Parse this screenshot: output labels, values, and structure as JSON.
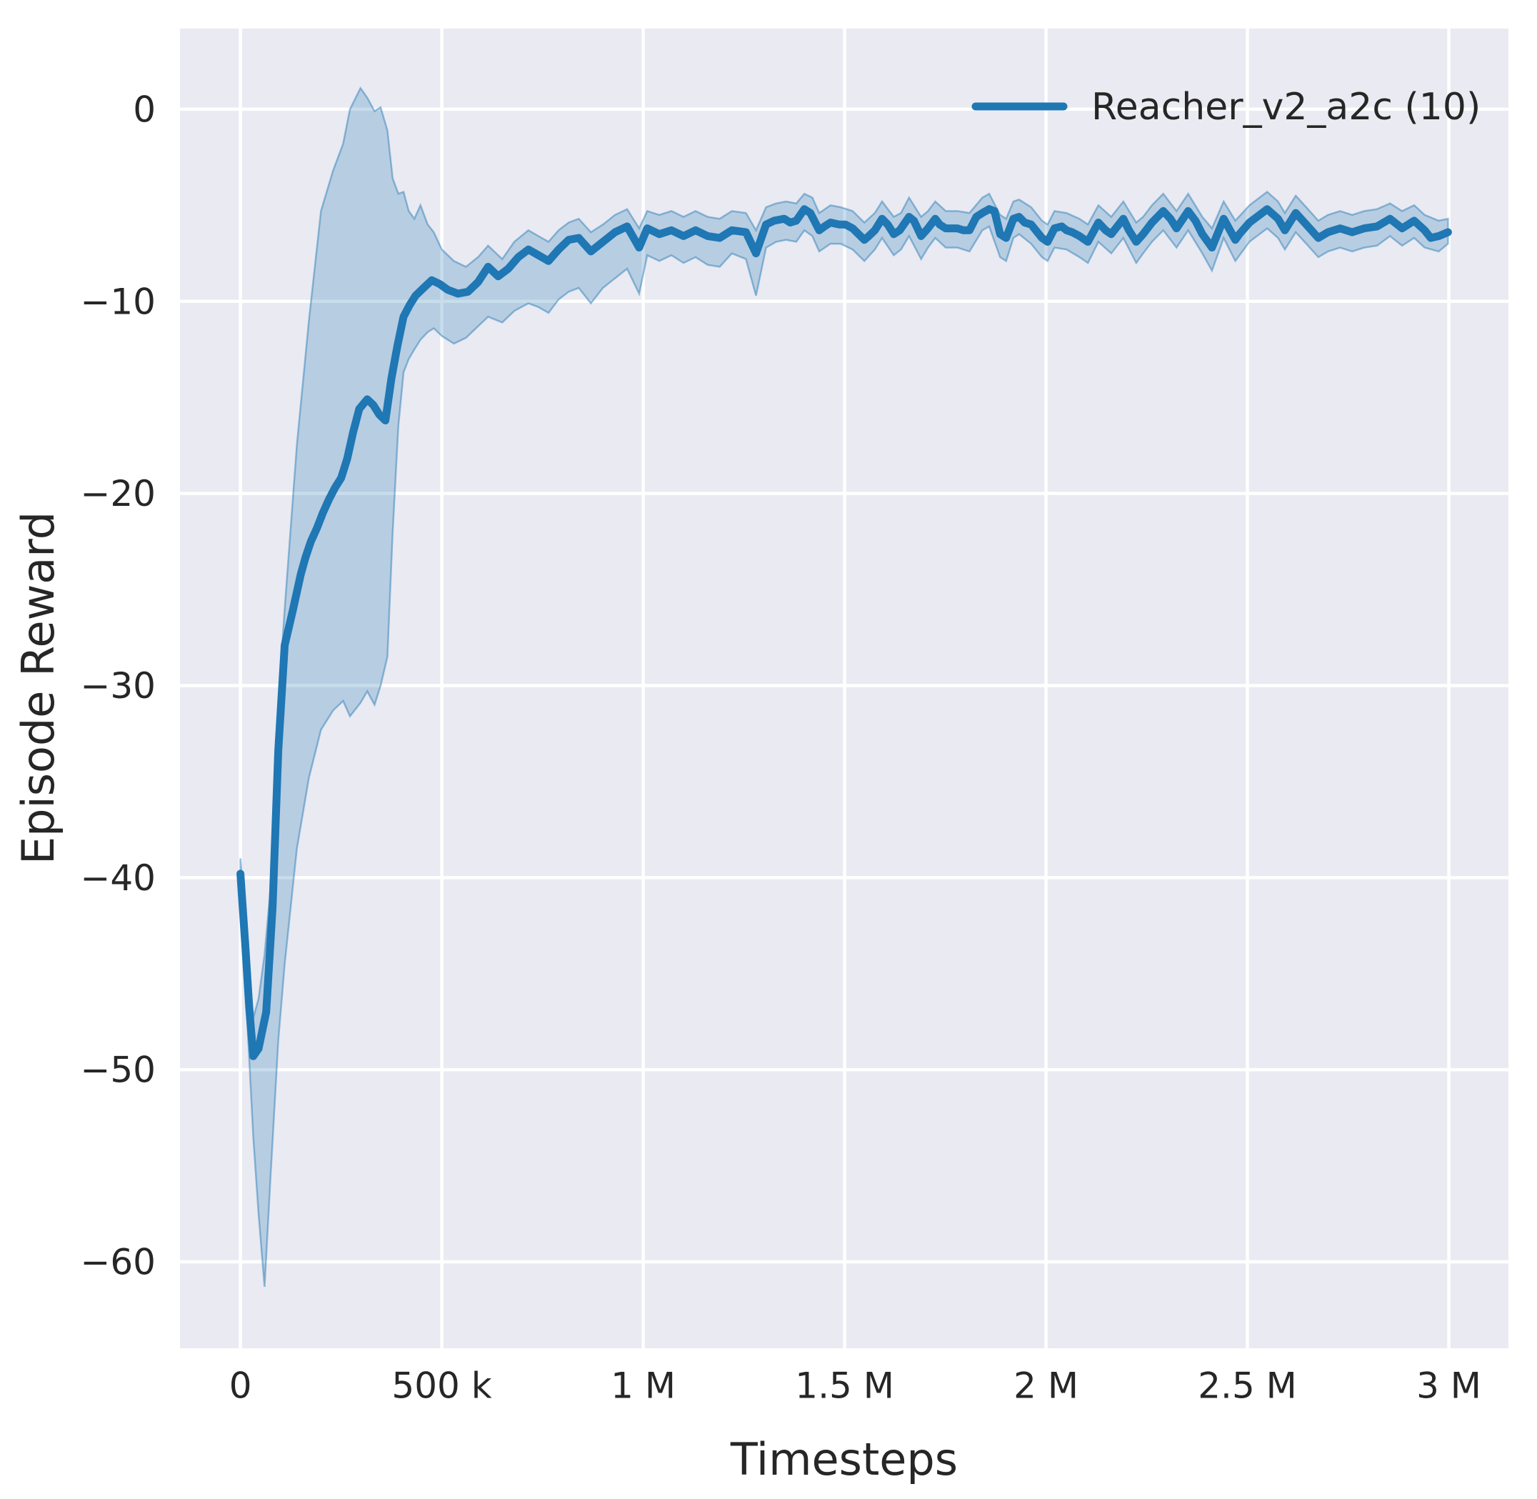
{
  "figure": {
    "background": "#ffffff",
    "plot_background": "#eaeaf2",
    "grid_color": "#ffffff",
    "text_color": "#262626"
  },
  "chart_data": {
    "type": "line",
    "title": "",
    "xlabel": "Timesteps",
    "ylabel": "Episode Reward",
    "grid": true,
    "legend_position": "upper right",
    "x_unit": "timesteps, stored as thousands",
    "xlim_k": [
      -150,
      3148
    ],
    "ylim": [
      -64.5,
      4.2
    ],
    "x_ticks": [
      {
        "value_k": 0,
        "label": "0"
      },
      {
        "value_k": 500,
        "label": "500 k"
      },
      {
        "value_k": 1000,
        "label": "1 M"
      },
      {
        "value_k": 1500,
        "label": "1.5 M"
      },
      {
        "value_k": 2000,
        "label": "2 M"
      },
      {
        "value_k": 2500,
        "label": "2.5 M"
      },
      {
        "value_k": 3000,
        "label": "3 M"
      }
    ],
    "y_ticks": [
      {
        "value": 0,
        "label": "0"
      },
      {
        "value": -10,
        "label": "−10"
      },
      {
        "value": -20,
        "label": "−20"
      },
      {
        "value": -30,
        "label": "−30"
      },
      {
        "value": -40,
        "label": "−40"
      },
      {
        "value": -50,
        "label": "−50"
      },
      {
        "value": -60,
        "label": "−60"
      }
    ],
    "series": [
      {
        "name": "Reacher_v2_a2c (10)",
        "color": "#1f77b4",
        "band_fill": "rgba(31,119,180,0.25)",
        "band_edge": "rgba(31,119,180,0.45)",
        "line_width": 11,
        "points": [
          [
            0,
            -39.8
          ],
          [
            12,
            -43.5
          ],
          [
            22,
            -46.8
          ],
          [
            32,
            -49.3
          ],
          [
            45,
            -48.9
          ],
          [
            64,
            -47.0
          ],
          [
            80,
            -41.5
          ],
          [
            94,
            -33.4
          ],
          [
            110,
            -27.9
          ],
          [
            130,
            -26.1
          ],
          [
            150,
            -24.2
          ],
          [
            162,
            -23.3
          ],
          [
            175,
            -22.5
          ],
          [
            190,
            -21.8
          ],
          [
            205,
            -21.0
          ],
          [
            220,
            -20.3
          ],
          [
            235,
            -19.7
          ],
          [
            250,
            -19.2
          ],
          [
            265,
            -18.2
          ],
          [
            280,
            -16.8
          ],
          [
            295,
            -15.6
          ],
          [
            315,
            -15.1
          ],
          [
            330,
            -15.4
          ],
          [
            345,
            -15.9
          ],
          [
            360,
            -16.2
          ],
          [
            375,
            -14.0
          ],
          [
            390,
            -12.3
          ],
          [
            405,
            -10.8
          ],
          [
            420,
            -10.2
          ],
          [
            435,
            -9.7
          ],
          [
            455,
            -9.3
          ],
          [
            475,
            -8.9
          ],
          [
            495,
            -9.1
          ],
          [
            515,
            -9.4
          ],
          [
            540,
            -9.6
          ],
          [
            565,
            -9.5
          ],
          [
            590,
            -9.0
          ],
          [
            615,
            -8.2
          ],
          [
            640,
            -8.7
          ],
          [
            665,
            -8.3
          ],
          [
            690,
            -7.7
          ],
          [
            715,
            -7.3
          ],
          [
            740,
            -7.6
          ],
          [
            765,
            -7.9
          ],
          [
            790,
            -7.3
          ],
          [
            815,
            -6.8
          ],
          [
            840,
            -6.7
          ],
          [
            870,
            -7.4
          ],
          [
            900,
            -6.9
          ],
          [
            930,
            -6.4
          ],
          [
            960,
            -6.1
          ],
          [
            990,
            -7.2
          ],
          [
            1010,
            -6.2
          ],
          [
            1040,
            -6.5
          ],
          [
            1070,
            -6.3
          ],
          [
            1100,
            -6.6
          ],
          [
            1130,
            -6.3
          ],
          [
            1160,
            -6.6
          ],
          [
            1190,
            -6.7
          ],
          [
            1220,
            -6.3
          ],
          [
            1255,
            -6.4
          ],
          [
            1280,
            -7.5
          ],
          [
            1305,
            -6.0
          ],
          [
            1325,
            -5.8
          ],
          [
            1350,
            -5.7
          ],
          [
            1365,
            -5.9
          ],
          [
            1380,
            -5.8
          ],
          [
            1400,
            -5.2
          ],
          [
            1415,
            -5.4
          ],
          [
            1437,
            -6.3
          ],
          [
            1450,
            -6.1
          ],
          [
            1465,
            -5.9
          ],
          [
            1487,
            -6.0
          ],
          [
            1502,
            -6.0
          ],
          [
            1520,
            -6.2
          ],
          [
            1549,
            -6.8
          ],
          [
            1560,
            -6.6
          ],
          [
            1575,
            -6.3
          ],
          [
            1593,
            -5.7
          ],
          [
            1607,
            -6.0
          ],
          [
            1622,
            -6.5
          ],
          [
            1637,
            -6.3
          ],
          [
            1660,
            -5.6
          ],
          [
            1672,
            -5.8
          ],
          [
            1690,
            -6.6
          ],
          [
            1707,
            -6.2
          ],
          [
            1725,
            -5.7
          ],
          [
            1736,
            -6.0
          ],
          [
            1751,
            -6.2
          ],
          [
            1780,
            -6.2
          ],
          [
            1795,
            -6.3
          ],
          [
            1810,
            -6.3
          ],
          [
            1827,
            -5.6
          ],
          [
            1842,
            -5.4
          ],
          [
            1859,
            -5.2
          ],
          [
            1872,
            -5.3
          ],
          [
            1886,
            -6.5
          ],
          [
            1901,
            -6.7
          ],
          [
            1919,
            -5.7
          ],
          [
            1933,
            -5.6
          ],
          [
            1947,
            -5.9
          ],
          [
            1963,
            -6.0
          ],
          [
            1990,
            -6.7
          ],
          [
            2004,
            -6.9
          ],
          [
            2021,
            -6.2
          ],
          [
            2039,
            -6.1
          ],
          [
            2051,
            -6.3
          ],
          [
            2065,
            -6.4
          ],
          [
            2083,
            -6.6
          ],
          [
            2104,
            -6.9
          ],
          [
            2130,
            -5.9
          ],
          [
            2148,
            -6.3
          ],
          [
            2162,
            -6.5
          ],
          [
            2192,
            -5.7
          ],
          [
            2206,
            -6.3
          ],
          [
            2224,
            -6.9
          ],
          [
            2241,
            -6.5
          ],
          [
            2263,
            -5.9
          ],
          [
            2291,
            -5.3
          ],
          [
            2309,
            -5.7
          ],
          [
            2324,
            -6.2
          ],
          [
            2353,
            -5.3
          ],
          [
            2371,
            -5.8
          ],
          [
            2388,
            -6.5
          ],
          [
            2412,
            -7.2
          ],
          [
            2441,
            -5.7
          ],
          [
            2470,
            -6.8
          ],
          [
            2480,
            -6.5
          ],
          [
            2505,
            -5.9
          ],
          [
            2549,
            -5.2
          ],
          [
            2576,
            -5.7
          ],
          [
            2593,
            -6.3
          ],
          [
            2620,
            -5.4
          ],
          [
            2646,
            -6.0
          ],
          [
            2676,
            -6.7
          ],
          [
            2700,
            -6.4
          ],
          [
            2730,
            -6.2
          ],
          [
            2760,
            -6.4
          ],
          [
            2790,
            -6.2
          ],
          [
            2822,
            -6.1
          ],
          [
            2854,
            -5.7
          ],
          [
            2884,
            -6.2
          ],
          [
            2914,
            -5.8
          ],
          [
            2940,
            -6.3
          ],
          [
            2955,
            -6.7
          ],
          [
            2975,
            -6.6
          ],
          [
            2998,
            -6.4
          ]
        ],
        "band": [
          [
            0,
            -39.0,
            -40.6
          ],
          [
            12,
            -42.0,
            -45.5
          ],
          [
            22,
            -44.8,
            -49.5
          ],
          [
            32,
            -47.3,
            -53.5
          ],
          [
            45,
            -46.3,
            -57.5
          ],
          [
            60,
            -44.0,
            -61.3
          ],
          [
            75,
            -40.5,
            -55.5
          ],
          [
            94,
            -31.0,
            -48.5
          ],
          [
            110,
            -26.0,
            -44.5
          ],
          [
            140,
            -17.5,
            -38.5
          ],
          [
            170,
            -11.0,
            -34.8
          ],
          [
            200,
            -5.3,
            -32.3
          ],
          [
            230,
            -3.2,
            -31.3
          ],
          [
            255,
            -1.8,
            -30.8
          ],
          [
            272,
            0.0,
            -31.6
          ],
          [
            298,
            1.1,
            -30.9
          ],
          [
            315,
            0.6,
            -30.3
          ],
          [
            333,
            -0.1,
            -31.0
          ],
          [
            348,
            0.1,
            -30.0
          ],
          [
            365,
            -1.1,
            -28.5
          ],
          [
            378,
            -3.6,
            -22.0
          ],
          [
            392,
            -4.4,
            -16.5
          ],
          [
            405,
            -4.3,
            -13.7
          ],
          [
            418,
            -5.3,
            -13.0
          ],
          [
            432,
            -5.7,
            -12.5
          ],
          [
            447,
            -5.0,
            -12.0
          ],
          [
            465,
            -6.0,
            -11.6
          ],
          [
            480,
            -6.4,
            -11.4
          ],
          [
            500,
            -7.3,
            -11.8
          ],
          [
            530,
            -7.9,
            -12.2
          ],
          [
            560,
            -8.2,
            -11.9
          ],
          [
            590,
            -7.7,
            -11.3
          ],
          [
            615,
            -7.1,
            -10.8
          ],
          [
            650,
            -7.8,
            -11.1
          ],
          [
            680,
            -6.9,
            -10.5
          ],
          [
            715,
            -6.3,
            -10.1
          ],
          [
            740,
            -6.6,
            -10.3
          ],
          [
            765,
            -6.9,
            -10.6
          ],
          [
            790,
            -6.3,
            -9.9
          ],
          [
            815,
            -5.9,
            -9.5
          ],
          [
            840,
            -5.7,
            -9.3
          ],
          [
            870,
            -6.4,
            -10.1
          ],
          [
            900,
            -6.0,
            -9.3
          ],
          [
            930,
            -5.5,
            -8.8
          ],
          [
            960,
            -5.2,
            -8.3
          ],
          [
            990,
            -6.2,
            -9.6
          ],
          [
            1010,
            -5.3,
            -7.6
          ],
          [
            1040,
            -5.5,
            -7.9
          ],
          [
            1070,
            -5.3,
            -7.6
          ],
          [
            1100,
            -5.6,
            -8.0
          ],
          [
            1130,
            -5.3,
            -7.7
          ],
          [
            1160,
            -5.6,
            -8.1
          ],
          [
            1190,
            -5.7,
            -8.2
          ],
          [
            1220,
            -5.3,
            -7.5
          ],
          [
            1255,
            -5.4,
            -7.8
          ],
          [
            1280,
            -6.3,
            -9.7
          ],
          [
            1305,
            -5.1,
            -7.2
          ],
          [
            1330,
            -4.9,
            -6.9
          ],
          [
            1355,
            -4.8,
            -6.8
          ],
          [
            1380,
            -4.9,
            -6.9
          ],
          [
            1400,
            -4.4,
            -6.3
          ],
          [
            1420,
            -4.6,
            -6.6
          ],
          [
            1437,
            -5.4,
            -7.4
          ],
          [
            1465,
            -5.0,
            -7.0
          ],
          [
            1490,
            -5.1,
            -7.0
          ],
          [
            1520,
            -5.3,
            -7.3
          ],
          [
            1549,
            -5.9,
            -7.9
          ],
          [
            1575,
            -5.4,
            -7.3
          ],
          [
            1593,
            -4.8,
            -6.7
          ],
          [
            1622,
            -5.6,
            -7.6
          ],
          [
            1640,
            -5.4,
            -7.3
          ],
          [
            1660,
            -4.6,
            -6.6
          ],
          [
            1690,
            -5.6,
            -7.8
          ],
          [
            1707,
            -5.3,
            -7.2
          ],
          [
            1725,
            -4.8,
            -6.7
          ],
          [
            1751,
            -5.3,
            -7.2
          ],
          [
            1780,
            -5.3,
            -7.2
          ],
          [
            1810,
            -5.4,
            -7.4
          ],
          [
            1842,
            -4.6,
            -6.3
          ],
          [
            1859,
            -4.4,
            -6.1
          ],
          [
            1886,
            -5.5,
            -7.7
          ],
          [
            1901,
            -5.7,
            -7.9
          ],
          [
            1919,
            -4.8,
            -6.7
          ],
          [
            1933,
            -4.7,
            -6.5
          ],
          [
            1963,
            -5.1,
            -7.0
          ],
          [
            1990,
            -5.8,
            -7.7
          ],
          [
            2004,
            -6.0,
            -7.9
          ],
          [
            2021,
            -5.3,
            -7.2
          ],
          [
            2051,
            -5.4,
            -7.3
          ],
          [
            2083,
            -5.7,
            -7.7
          ],
          [
            2104,
            -6.0,
            -8.0
          ],
          [
            2130,
            -5.0,
            -6.9
          ],
          [
            2162,
            -5.6,
            -7.5
          ],
          [
            2192,
            -4.8,
            -6.7
          ],
          [
            2224,
            -5.9,
            -8.0
          ],
          [
            2241,
            -5.6,
            -7.5
          ],
          [
            2263,
            -5.0,
            -6.9
          ],
          [
            2291,
            -4.4,
            -6.3
          ],
          [
            2324,
            -5.3,
            -7.2
          ],
          [
            2353,
            -4.4,
            -6.3
          ],
          [
            2388,
            -5.6,
            -7.5
          ],
          [
            2412,
            -6.2,
            -8.4
          ],
          [
            2441,
            -4.8,
            -6.7
          ],
          [
            2470,
            -5.8,
            -7.9
          ],
          [
            2505,
            -5.0,
            -6.9
          ],
          [
            2549,
            -4.3,
            -6.2
          ],
          [
            2576,
            -4.8,
            -6.7
          ],
          [
            2593,
            -5.4,
            -7.3
          ],
          [
            2620,
            -4.5,
            -6.4
          ],
          [
            2646,
            -5.1,
            -7.0
          ],
          [
            2676,
            -5.8,
            -7.7
          ],
          [
            2700,
            -5.5,
            -7.4
          ],
          [
            2730,
            -5.3,
            -7.2
          ],
          [
            2760,
            -5.5,
            -7.4
          ],
          [
            2790,
            -5.3,
            -7.2
          ],
          [
            2822,
            -5.2,
            -7.1
          ],
          [
            2854,
            -4.9,
            -6.6
          ],
          [
            2884,
            -5.3,
            -7.1
          ],
          [
            2914,
            -5.0,
            -6.7
          ],
          [
            2940,
            -5.5,
            -7.2
          ],
          [
            2975,
            -5.8,
            -7.4
          ],
          [
            2998,
            -5.7,
            -7.0
          ]
        ]
      }
    ]
  }
}
